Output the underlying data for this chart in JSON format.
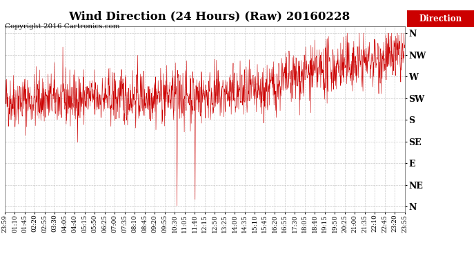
{
  "title": "Wind Direction (24 Hours) (Raw) 20160228",
  "copyright": "Copyright 2016 Cartronics.com",
  "legend_label": "Direction",
  "legend_bg": "#cc0000",
  "legend_text_color": "#ffffff",
  "line_color": "#cc0000",
  "bg_color": "#ffffff",
  "plot_bg_color": "#ffffff",
  "grid_color": "#bbbbbb",
  "ytick_labels": [
    "N",
    "NW",
    "W",
    "SW",
    "S",
    "SE",
    "E",
    "NE",
    "N"
  ],
  "ytick_values": [
    360,
    315,
    270,
    225,
    180,
    135,
    90,
    45,
    0
  ],
  "ylim": [
    -10,
    375
  ],
  "xtick_labels": [
    "23:59",
    "01:10",
    "01:45",
    "02:20",
    "02:55",
    "03:30",
    "04:05",
    "04:40",
    "05:15",
    "05:50",
    "06:25",
    "07:00",
    "07:35",
    "08:10",
    "08:45",
    "09:20",
    "09:55",
    "10:30",
    "11:05",
    "11:40",
    "12:15",
    "12:50",
    "13:25",
    "14:00",
    "14:35",
    "15:10",
    "15:45",
    "16:20",
    "16:55",
    "17:30",
    "18:05",
    "18:40",
    "19:15",
    "19:50",
    "20:25",
    "21:00",
    "21:35",
    "22:10",
    "22:45",
    "23:20",
    "23:55"
  ],
  "title_fontsize": 12,
  "copyright_fontsize": 7.5,
  "ytick_fontsize": 9,
  "xtick_fontsize": 6.5
}
